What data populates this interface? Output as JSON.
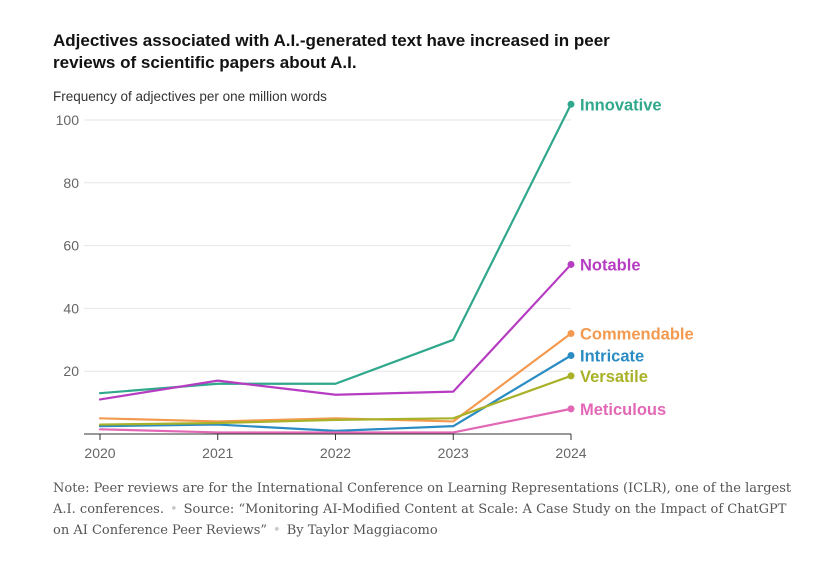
{
  "title": "Adjectives associated with A.I.-generated text have increased in peer reviews of scientific papers about A.I.",
  "ylabel": "Frequency of adjectives per one million words",
  "note": {
    "text": "Note: Peer reviews are for the International Conference on Learning Representations (ICLR), one of the largest A.I. conferences.",
    "source": "Source: “Monitoring AI-Modified Content at Scale: A Case Study on the Impact of ChatGPT on AI Conference Peer Reviews”",
    "byline": "By Taylor Maggiacomo"
  },
  "chart_data": {
    "type": "line",
    "x": [
      2020,
      2021,
      2022,
      2023,
      2024
    ],
    "ylim": [
      0,
      100
    ],
    "yticks": [
      20,
      40,
      60,
      80,
      100
    ],
    "grid": true,
    "legend": "direct labels at line ends (right)",
    "series": [
      {
        "name": "Innovative",
        "color": "#2fa88b",
        "values": [
          13,
          16,
          16,
          30,
          105
        ]
      },
      {
        "name": "Notable",
        "color": "#b63dc2",
        "values": [
          11,
          17,
          12.5,
          13.5,
          54
        ]
      },
      {
        "name": "Commendable",
        "color": "#f39a50",
        "values": [
          5,
          4,
          5,
          4,
          32
        ]
      },
      {
        "name": "Intricate",
        "color": "#2b8cc4",
        "values": [
          2.5,
          3,
          1,
          2.5,
          25
        ]
      },
      {
        "name": "Versatile",
        "color": "#a8b127",
        "values": [
          3,
          3.5,
          4.5,
          5,
          18.5
        ]
      },
      {
        "name": "Meticulous",
        "color": "#e268b6",
        "values": [
          1.5,
          0.5,
          0.5,
          0.5,
          8
        ]
      }
    ]
  }
}
